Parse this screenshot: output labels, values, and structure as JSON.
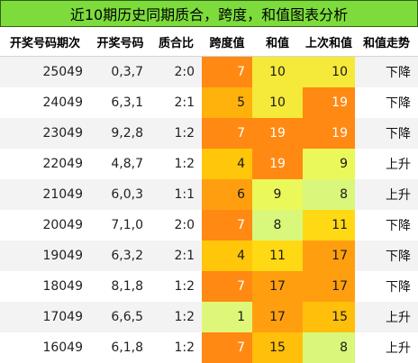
{
  "title": "近10期历史同期质合，跨度，和值图表分析",
  "headers": [
    "开奖号码期次",
    "开奖号码",
    "质合比",
    "跨度值",
    "和值",
    "上次和值",
    "和值走势"
  ],
  "rows": [
    {
      "period": "25049",
      "numbers": "0,3,7",
      "ratio": "2:0",
      "span": "7",
      "sum": "10",
      "prev_sum": "10",
      "trend": "下降"
    },
    {
      "period": "24049",
      "numbers": "6,3,1",
      "ratio": "2:1",
      "span": "5",
      "sum": "10",
      "prev_sum": "19",
      "trend": "下降"
    },
    {
      "period": "23049",
      "numbers": "9,2,8",
      "ratio": "1:2",
      "span": "7",
      "sum": "19",
      "prev_sum": "19",
      "trend": "下降"
    },
    {
      "period": "22049",
      "numbers": "4,8,7",
      "ratio": "1:2",
      "span": "4",
      "sum": "19",
      "prev_sum": "9",
      "trend": "上升"
    },
    {
      "period": "21049",
      "numbers": "6,0,3",
      "ratio": "1:1",
      "span": "6",
      "sum": "9",
      "prev_sum": "8",
      "trend": "上升"
    },
    {
      "period": "20049",
      "numbers": "7,1,0",
      "ratio": "2:0",
      "span": "7",
      "sum": "8",
      "prev_sum": "11",
      "trend": "下降"
    },
    {
      "period": "19049",
      "numbers": "6,3,2",
      "ratio": "2:1",
      "span": "4",
      "sum": "11",
      "prev_sum": "17",
      "trend": "下降"
    },
    {
      "period": "18049",
      "numbers": "8,1,8",
      "ratio": "1:2",
      "span": "7",
      "sum": "17",
      "prev_sum": "17",
      "trend": "下降"
    },
    {
      "period": "17049",
      "numbers": "6,6,5",
      "ratio": "1:2",
      "span": "1",
      "sum": "17",
      "prev_sum": "15",
      "trend": "上升"
    },
    {
      "period": "16049",
      "numbers": "6,1,8",
      "ratio": "1:2",
      "span": "7",
      "sum": "15",
      "prev_sum": "8",
      "trend": "上升"
    }
  ],
  "heat_colors": {
    "span": {
      "1": "#dff779",
      "4": "#ffc60a",
      "5": "#ffb20c",
      "6": "#ff9f0f",
      "7": "#ff8912"
    },
    "sum": {
      "8": "#d9f77a",
      "9": "#eaf85a",
      "10": "#f5e93a",
      "11": "#ffd914",
      "15": "#ffbf0a",
      "17": "#ff9f0f",
      "19": "#ff8912"
    }
  }
}
